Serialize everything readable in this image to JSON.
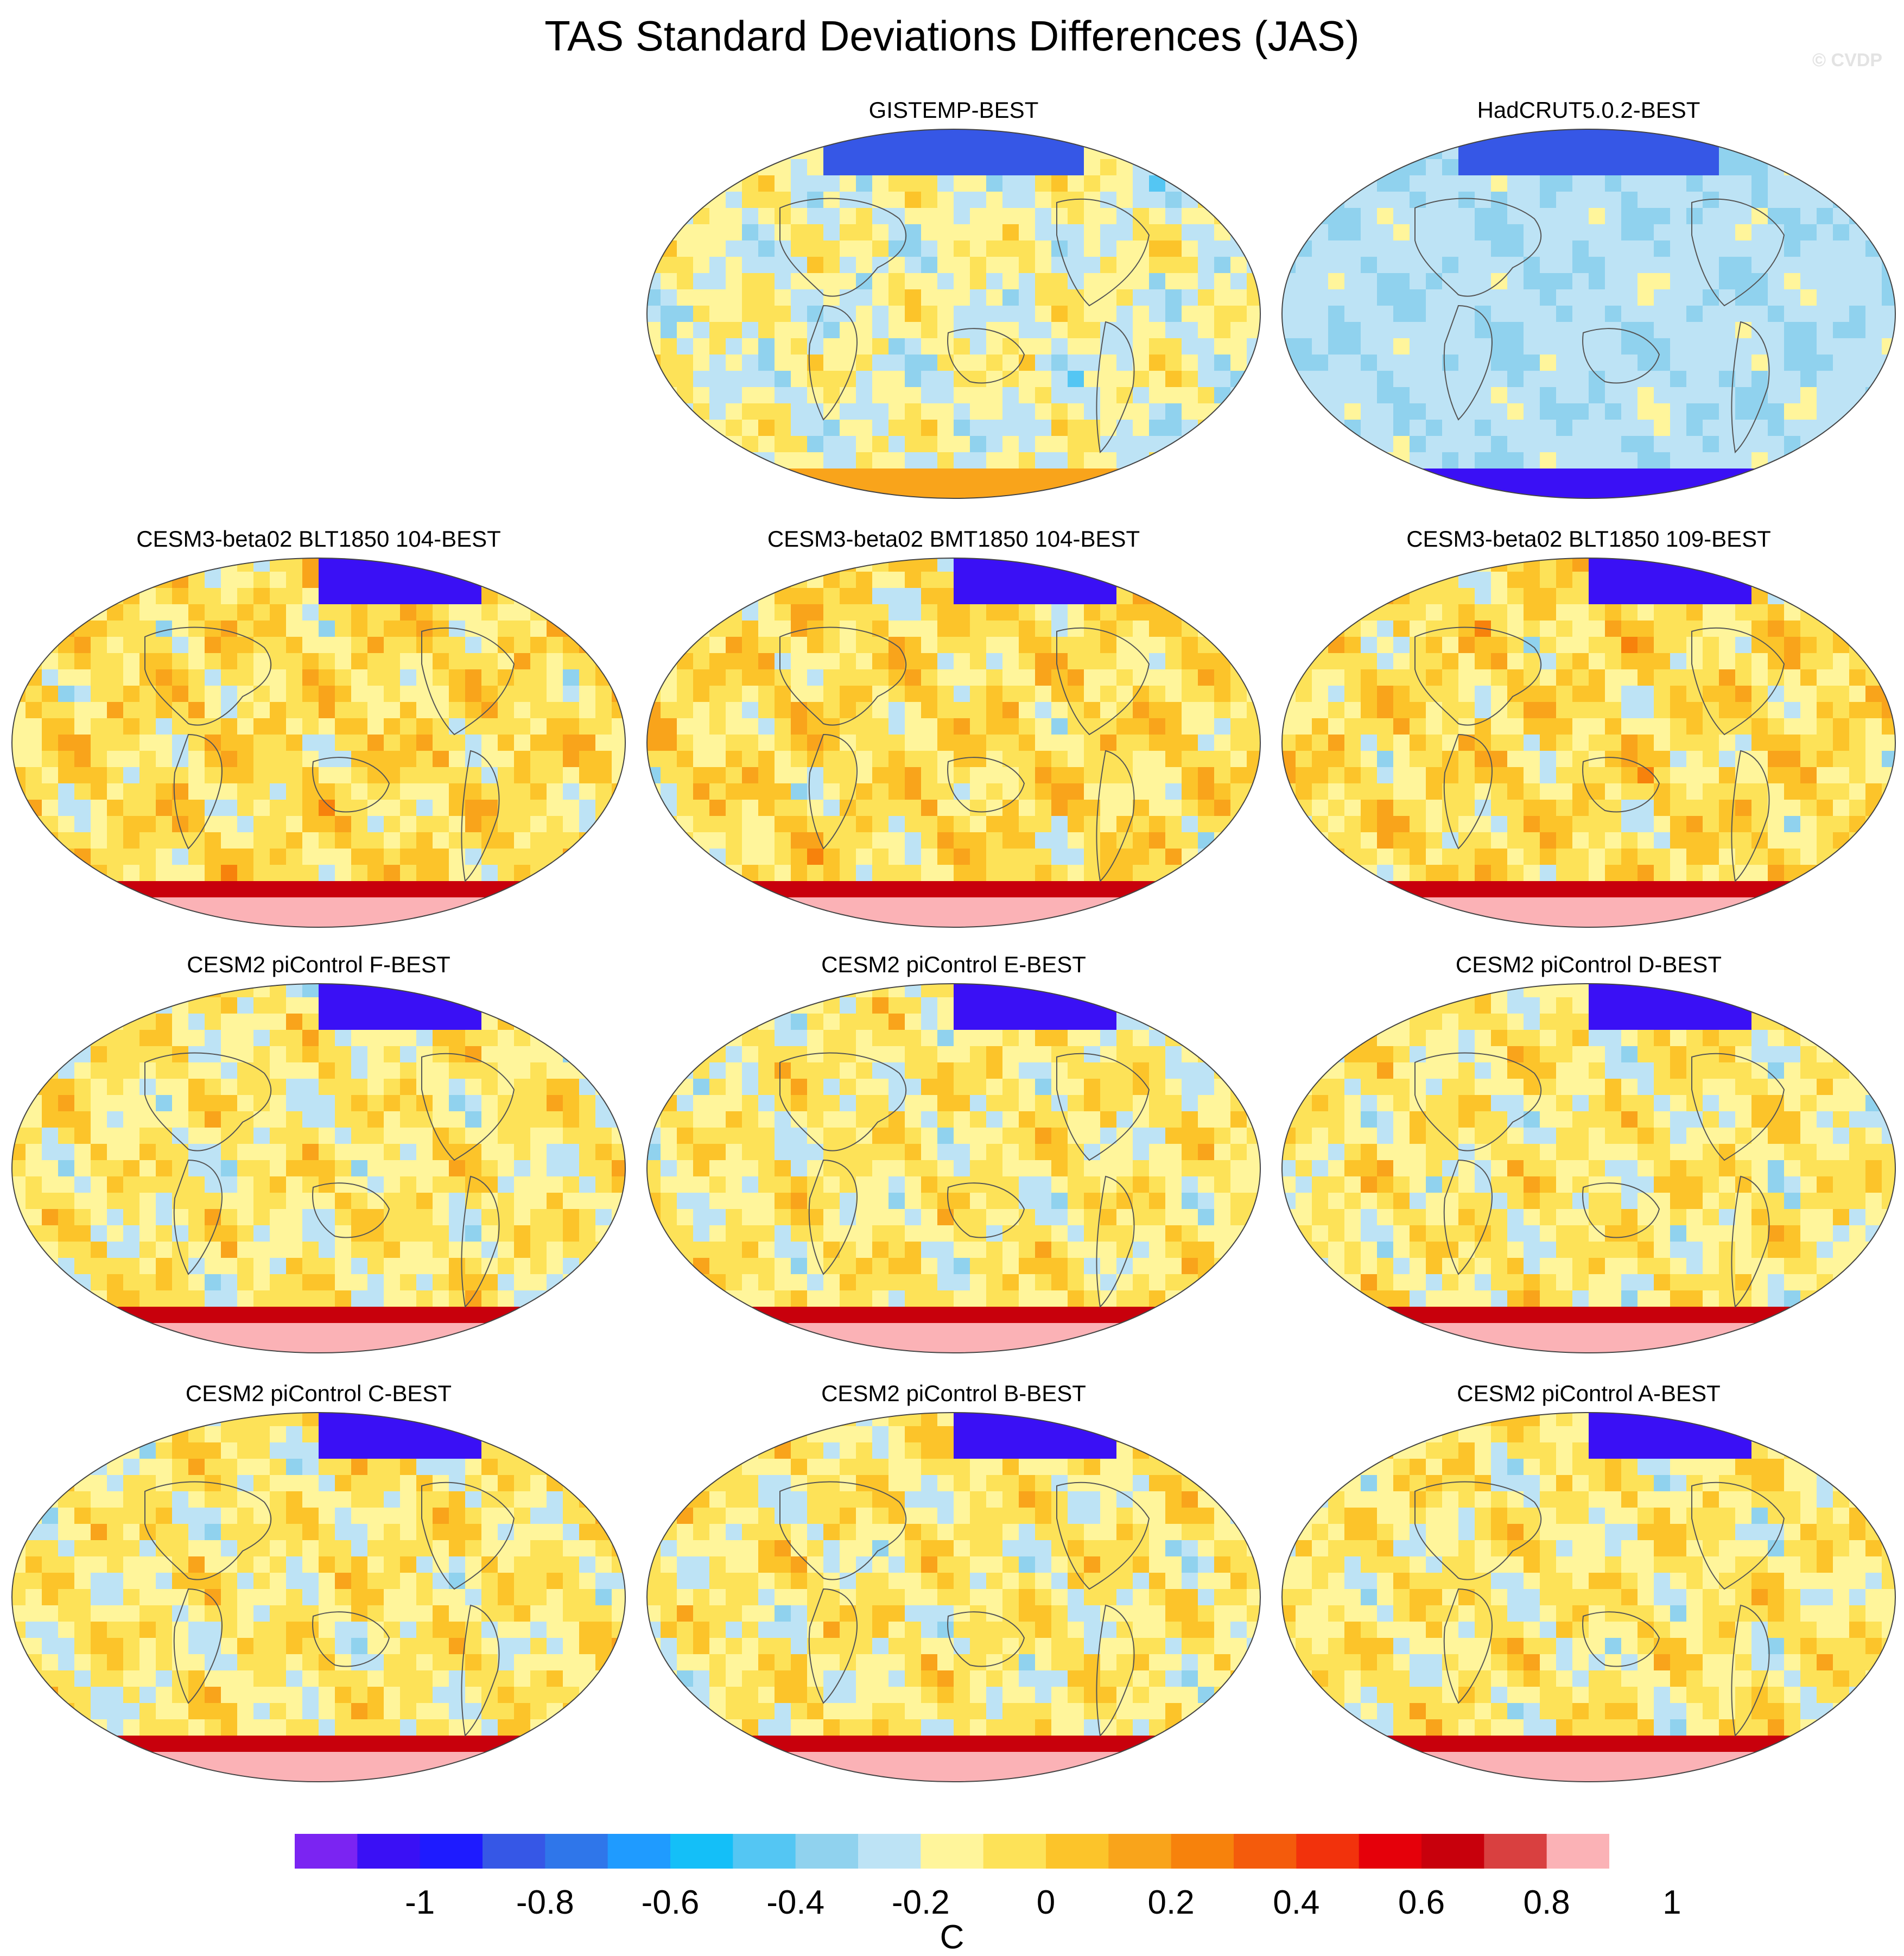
{
  "title": "TAS Standard Deviations Differences (JAS)",
  "credit": "© CVDP",
  "units": "C",
  "colors": {
    "land_outline": "#555555",
    "map_border": "#444444",
    "missing": "#ffffff"
  },
  "colorbar": {
    "ticks": [
      "-1",
      "-0.8",
      "-0.6",
      "-0.4",
      "-0.2",
      "0",
      "0.2",
      "0.4",
      "0.6",
      "0.8",
      "1"
    ],
    "colors": [
      "#7b24f2",
      "#3a10f5",
      "#1e1bff",
      "#3657e6",
      "#2f76ea",
      "#1f9bff",
      "#14bff8",
      "#54c6f3",
      "#90d2ee",
      "#bde3f5",
      "#fff59b",
      "#fde258",
      "#fcc42a",
      "#f9a41b",
      "#f7820c",
      "#f45b0c",
      "#f2320c",
      "#e5000a",
      "#c8000c",
      "#d94040",
      "#fbb2b6"
    ]
  },
  "panels": [
    {
      "id": "gistemp",
      "title": "GISTEMP-BEST",
      "style": "obs_a"
    },
    {
      "id": "hadcrut",
      "title": "HadCRUT5.0.2-BEST",
      "style": "obs_b"
    },
    {
      "id": "cesm3-blt104",
      "title": "CESM3-beta02 BLT1850 104-BEST",
      "style": "cesm3"
    },
    {
      "id": "cesm3-bmt104",
      "title": "CESM3-beta02 BMT1850 104-BEST",
      "style": "cesm3"
    },
    {
      "id": "cesm3-blt109",
      "title": "CESM3-beta02 BLT1850 109-BEST",
      "style": "cesm3"
    },
    {
      "id": "cesm2-f",
      "title": "CESM2 piControl F-BEST",
      "style": "cesm2"
    },
    {
      "id": "cesm2-e",
      "title": "CESM2 piControl E-BEST",
      "style": "cesm2"
    },
    {
      "id": "cesm2-d",
      "title": "CESM2 piControl D-BEST",
      "style": "cesm2"
    },
    {
      "id": "cesm2-c",
      "title": "CESM2 piControl C-BEST",
      "style": "cesm2"
    },
    {
      "id": "cesm2-b",
      "title": "CESM2 piControl B-BEST",
      "style": "cesm2"
    },
    {
      "id": "cesm2-a",
      "title": "CESM2 piControl A-BEST",
      "style": "cesm2"
    }
  ]
}
